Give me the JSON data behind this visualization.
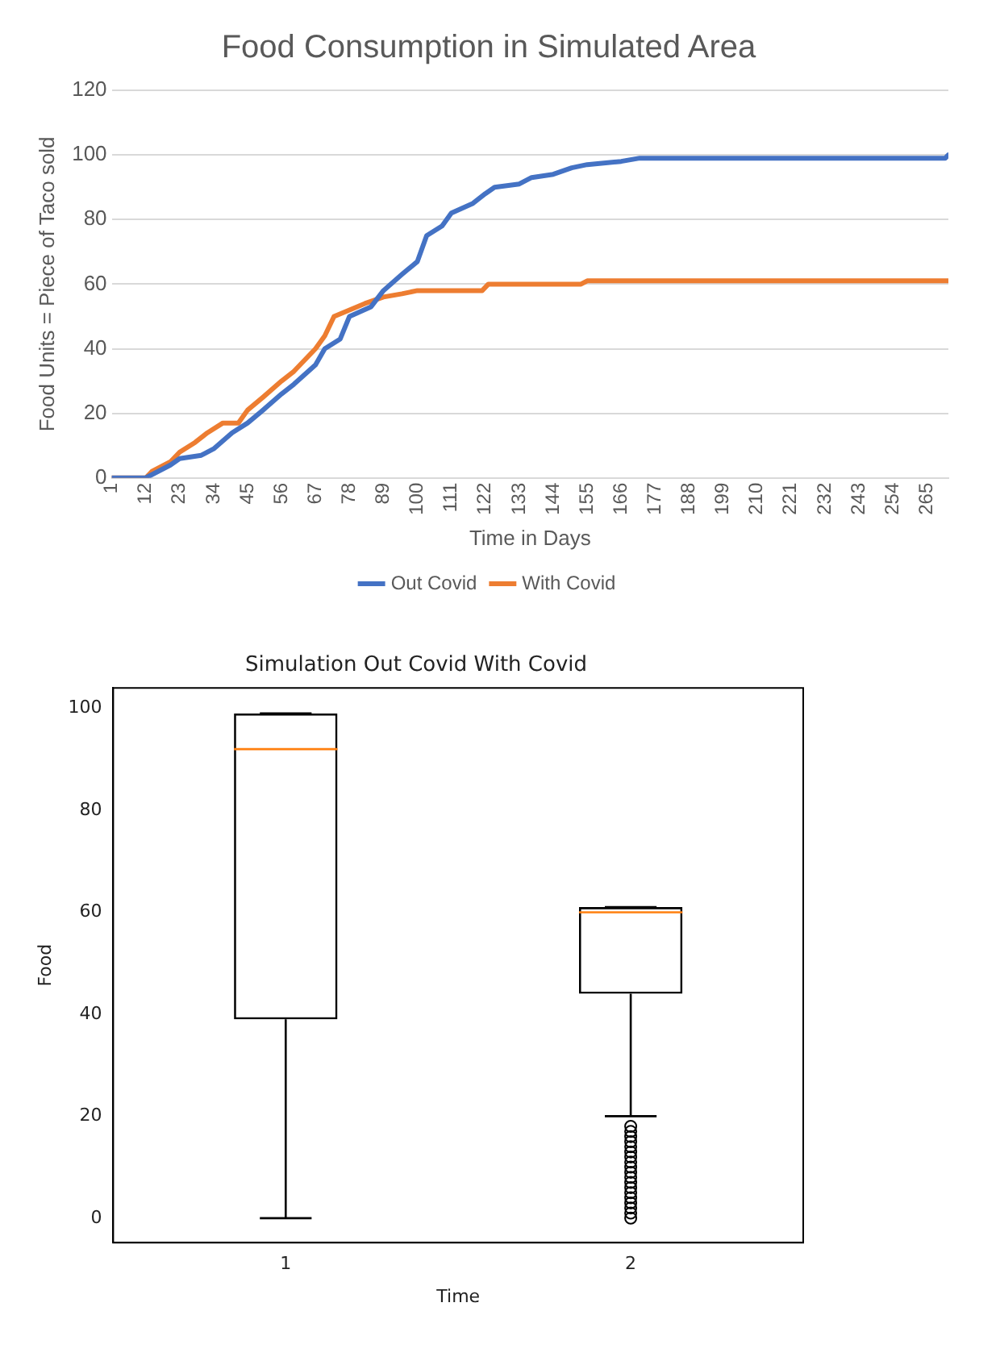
{
  "chart_data": [
    {
      "type": "line",
      "title": "Food Consumption in Simulated Area",
      "xlabel": "Time in Days",
      "ylabel": "Food Units = Piece of Taco sold",
      "xlim": [
        1,
        272
      ],
      "xticks": [
        1,
        12,
        23,
        34,
        45,
        56,
        67,
        78,
        89,
        100,
        111,
        122,
        133,
        144,
        155,
        166,
        177,
        188,
        199,
        210,
        221,
        232,
        243,
        254,
        265
      ],
      "ylim": [
        0,
        120
      ],
      "yticks": [
        0,
        20,
        40,
        60,
        80,
        100,
        120
      ],
      "grid": "y",
      "legend": "bottom",
      "marker": "none",
      "line_style": "solid",
      "series": [
        {
          "name": "Out Covid",
          "color": "#4472c4",
          "x": [
            1,
            12,
            20,
            23,
            30,
            34,
            40,
            45,
            50,
            56,
            60,
            67,
            70,
            75,
            78,
            85,
            89,
            95,
            100,
            103,
            108,
            111,
            118,
            122,
            125,
            133,
            137,
            144,
            150,
            155,
            166,
            172,
            271,
            272
          ],
          "values": [
            0,
            0,
            4,
            6,
            7,
            9,
            14,
            17,
            21,
            26,
            29,
            35,
            40,
            43,
            50,
            53,
            58,
            63,
            67,
            75,
            78,
            82,
            85,
            88,
            90,
            91,
            93,
            94,
            96,
            97,
            98,
            99,
            99,
            100
          ]
        },
        {
          "name": "With Covid",
          "color": "#ed7d31",
          "x": [
            1,
            12,
            14,
            20,
            23,
            28,
            32,
            37,
            42,
            45,
            50,
            56,
            60,
            67,
            70,
            73,
            78,
            83,
            89,
            95,
            100,
            121,
            123,
            153,
            155,
            272
          ],
          "values": [
            0,
            0,
            2,
            5,
            8,
            11,
            14,
            17,
            17,
            21,
            25,
            30,
            33,
            40,
            44,
            50,
            52,
            54,
            56,
            57,
            58,
            58,
            60,
            60,
            61,
            61
          ]
        }
      ]
    },
    {
      "type": "box",
      "title": "Simulation Out Covid With Covid",
      "xlabel": "Time",
      "ylabel": "Food",
      "categories": [
        "1",
        "2"
      ],
      "ylim": [
        -4.8,
        104
      ],
      "yticks": [
        0,
        20,
        40,
        60,
        80,
        100
      ],
      "boxes": [
        {
          "low": 0,
          "q1": 39,
          "median": 92,
          "q3": 99,
          "high": 99
        },
        {
          "low": 20,
          "q1": 44,
          "median": 60,
          "q3": 61,
          "high": 61,
          "outliers": [
            0,
            1,
            2,
            3,
            4,
            5,
            6,
            7,
            8,
            9,
            10,
            11,
            12,
            13,
            14,
            15,
            16,
            17,
            18
          ]
        }
      ]
    }
  ]
}
